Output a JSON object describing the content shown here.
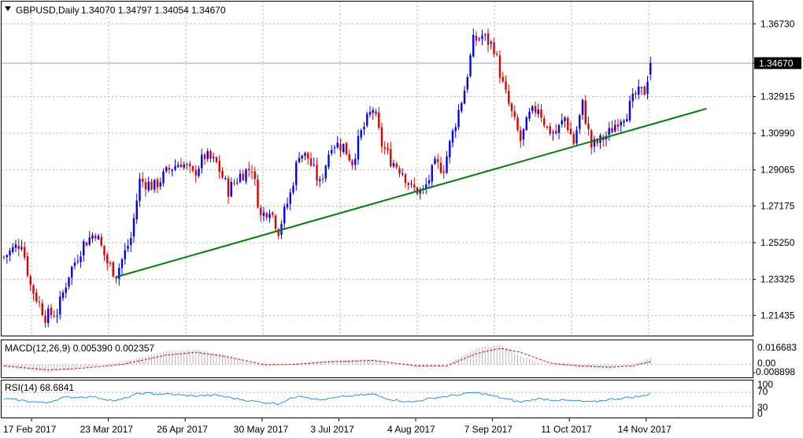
{
  "header": {
    "symbol": "GBPUSD,Daily",
    "ohlc": "1.34070 1.34797 1.34054 1.34670"
  },
  "price_tag": "1.34670",
  "macd": {
    "label": "MACD(12,26,9) 0.005390 0.002357",
    "ticks": [
      "0.016683",
      "0.00",
      "-0.008898"
    ]
  },
  "rsi": {
    "label": "RSI(14) 68.6841",
    "ticks": [
      "100",
      "70",
      "30",
      "0"
    ]
  },
  "colors": {
    "bull": "#0000ff",
    "bear": "#e00000",
    "trendline": "#008000",
    "grid": "#b0b0b0",
    "macd_hist": "#b8b8b8",
    "macd_signal": "#e00000",
    "rsi_line": "#1e90ff",
    "price_line": "#a0a0a0"
  },
  "chart_data": [
    {
      "type": "candlestick",
      "title": "GBPUSD,Daily",
      "ylim": [
        1.205,
        1.3765
      ],
      "y_ticks": [
        "1.36730",
        "1.34670",
        "1.32915",
        "1.30990",
        "1.29065",
        "1.27175",
        "1.25250",
        "1.23325",
        "1.21435"
      ],
      "x_ticks": [
        "17 Feb 2017",
        "23 Mar 2017",
        "26 Apr 2017",
        "30 May 2017",
        "3 Jul 2017",
        "4 Aug 2017",
        "7 Sep 2017",
        "11 Oct 2017",
        "14 Nov 2017"
      ],
      "anchors": [
        [
          0,
          1.245
        ],
        [
          6,
          1.253
        ],
        [
          9,
          1.23
        ],
        [
          14,
          1.214
        ],
        [
          18,
          1.216
        ],
        [
          22,
          1.236
        ],
        [
          27,
          1.252
        ],
        [
          31,
          1.258
        ],
        [
          35,
          1.242
        ],
        [
          38,
          1.236
        ],
        [
          43,
          1.255
        ],
        [
          46,
          1.285
        ],
        [
          51,
          1.282
        ],
        [
          56,
          1.291
        ],
        [
          60,
          1.295
        ],
        [
          64,
          1.288
        ],
        [
          68,
          1.298
        ],
        [
          72,
          1.294
        ],
        [
          76,
          1.28
        ],
        [
          80,
          1.288
        ],
        [
          84,
          1.292
        ],
        [
          87,
          1.266
        ],
        [
          90,
          1.271
        ],
        [
          93,
          1.259
        ],
        [
          97,
          1.278
        ],
        [
          100,
          1.3
        ],
        [
          103,
          1.297
        ],
        [
          107,
          1.283
        ],
        [
          111,
          1.305
        ],
        [
          115,
          1.303
        ],
        [
          118,
          1.295
        ],
        [
          121,
          1.31
        ],
        [
          125,
          1.323
        ],
        [
          128,
          1.304
        ],
        [
          131,
          1.296
        ],
        [
          135,
          1.29
        ],
        [
          138,
          1.281
        ],
        [
          142,
          1.279
        ],
        [
          146,
          1.293
        ],
        [
          149,
          1.292
        ],
        [
          153,
          1.316
        ],
        [
          156,
          1.333
        ],
        [
          159,
          1.358
        ],
        [
          162,
          1.361
        ],
        [
          166,
          1.355
        ],
        [
          169,
          1.335
        ],
        [
          172,
          1.32
        ],
        [
          175,
          1.306
        ],
        [
          178,
          1.319
        ],
        [
          181,
          1.324
        ],
        [
          184,
          1.312
        ],
        [
          187,
          1.31
        ],
        [
          190,
          1.318
        ],
        [
          193,
          1.305
        ],
        [
          196,
          1.325
        ],
        [
          199,
          1.303
        ],
        [
          202,
          1.306
        ],
        [
          205,
          1.31
        ],
        [
          208,
          1.317
        ],
        [
          211,
          1.321
        ],
        [
          214,
          1.33
        ],
        [
          217,
          1.332
        ],
        [
          219,
          1.3467
        ]
      ],
      "trendline": [
        [
          38,
          1.2345
        ],
        [
          238,
          1.3228
        ]
      ],
      "current_price": 1.3467
    },
    {
      "type": "line",
      "title": "MACD(12,26,9) 0.005390 0.002357",
      "ylim": [
        -0.008898,
        0.016683
      ],
      "histogram_anchors": [
        [
          0,
          -0.002
        ],
        [
          15,
          -0.006
        ],
        [
          25,
          -0.003
        ],
        [
          40,
          0.002
        ],
        [
          55,
          0.01
        ],
        [
          65,
          0.011
        ],
        [
          75,
          0.007
        ],
        [
          88,
          -0.002
        ],
        [
          98,
          0.001
        ],
        [
          110,
          0.003
        ],
        [
          125,
          0.004
        ],
        [
          140,
          -0.002
        ],
        [
          150,
          0.0
        ],
        [
          160,
          0.012
        ],
        [
          168,
          0.015
        ],
        [
          175,
          0.006
        ],
        [
          185,
          -0.001
        ],
        [
          195,
          -0.002
        ],
        [
          205,
          -0.003
        ],
        [
          213,
          0.0
        ],
        [
          219,
          0.005
        ]
      ],
      "signal_anchors": [
        [
          0,
          -0.001
        ],
        [
          15,
          -0.004
        ],
        [
          25,
          -0.003
        ],
        [
          40,
          0.0
        ],
        [
          55,
          0.007
        ],
        [
          65,
          0.009
        ],
        [
          75,
          0.006
        ],
        [
          88,
          0.0
        ],
        [
          98,
          0.0
        ],
        [
          110,
          0.002
        ],
        [
          125,
          0.003
        ],
        [
          140,
          -0.001
        ],
        [
          150,
          -0.001
        ],
        [
          160,
          0.008
        ],
        [
          168,
          0.012
        ],
        [
          175,
          0.009
        ],
        [
          185,
          0.001
        ],
        [
          195,
          -0.001
        ],
        [
          205,
          -0.002
        ],
        [
          213,
          -0.001
        ],
        [
          219,
          0.002
        ]
      ]
    },
    {
      "type": "line",
      "title": "RSI(14) 68.6841",
      "ylim": [
        0,
        100
      ],
      "levels": [
        70,
        30
      ],
      "anchors": [
        [
          0,
          52
        ],
        [
          14,
          40
        ],
        [
          20,
          55
        ],
        [
          30,
          58
        ],
        [
          38,
          45
        ],
        [
          46,
          68
        ],
        [
          56,
          65
        ],
        [
          64,
          60
        ],
        [
          72,
          62
        ],
        [
          80,
          50
        ],
        [
          87,
          42
        ],
        [
          93,
          38
        ],
        [
          100,
          62
        ],
        [
          107,
          48
        ],
        [
          115,
          58
        ],
        [
          125,
          65
        ],
        [
          131,
          50
        ],
        [
          138,
          42
        ],
        [
          146,
          55
        ],
        [
          153,
          62
        ],
        [
          159,
          70
        ],
        [
          162,
          67
        ],
        [
          168,
          55
        ],
        [
          175,
          42
        ],
        [
          181,
          52
        ],
        [
          187,
          48
        ],
        [
          193,
          46
        ],
        [
          199,
          42
        ],
        [
          205,
          50
        ],
        [
          211,
          55
        ],
        [
          217,
          60
        ],
        [
          219,
          68.68
        ]
      ]
    }
  ]
}
